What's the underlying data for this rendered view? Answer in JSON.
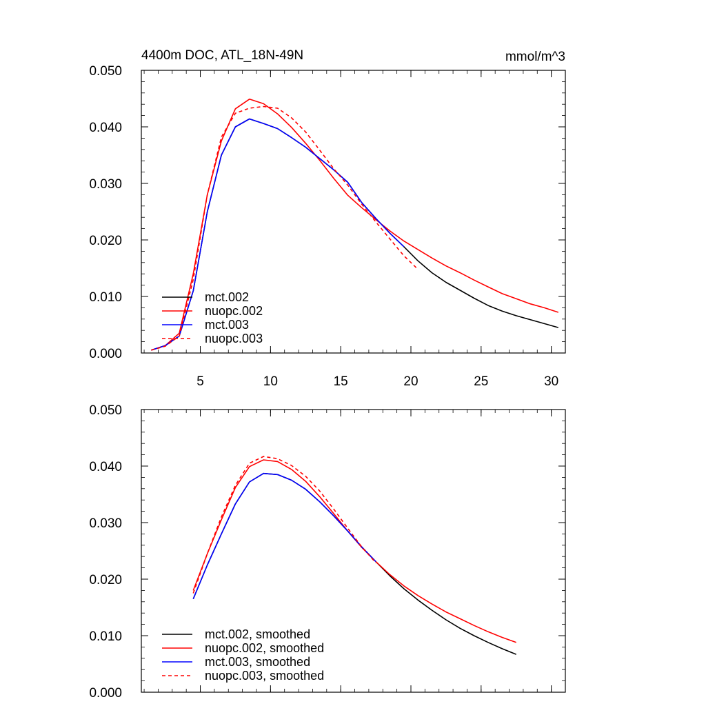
{
  "chart_data": [
    {
      "type": "line",
      "title": "4400m DOC, ATL_18N-49N",
      "units": "mmol/m^3",
      "xlabel": "",
      "ylabel": "",
      "xlim": [
        0.8,
        31
      ],
      "ylim": [
        0,
        0.05
      ],
      "xticks": [
        5,
        10,
        15,
        20,
        25,
        30
      ],
      "xtick_labels": [
        "5",
        "10",
        "15",
        "20",
        "25",
        "30"
      ],
      "yticks": [
        0,
        0.01,
        0.02,
        0.03,
        0.04,
        0.05
      ],
      "ytick_labels": [
        "0.000",
        "0.010",
        "0.020",
        "0.030",
        "0.040",
        "0.050"
      ],
      "legend_position": "lower-left",
      "series": [
        {
          "name": "mct.002",
          "color": "#000000",
          "dash": "solid",
          "x": [
            1.5,
            2.5,
            3.5,
            4.5,
            5.5,
            6.5,
            7.5,
            8.5,
            9.5,
            10.5,
            11.5,
            12.5,
            13.5,
            14.5,
            15.5,
            16.5,
            17.5,
            18.5,
            19.5,
            20.5,
            21.5,
            22.5,
            23.5,
            24.5,
            25.5,
            26.5,
            27.5,
            28.5,
            29.5,
            30.5
          ],
          "y": [
            0.0005,
            0.0013,
            0.003,
            0.011,
            0.025,
            0.035,
            0.04,
            0.0414,
            0.0406,
            0.0397,
            0.0381,
            0.0364,
            0.0344,
            0.0324,
            0.0302,
            0.0266,
            0.0238,
            0.0212,
            0.0188,
            0.0163,
            0.0142,
            0.0125,
            0.0111,
            0.0097,
            0.0084,
            0.0074,
            0.0066,
            0.0059,
            0.0052,
            0.0045
          ]
        },
        {
          "name": "nuopc.002",
          "color": "#ff0000",
          "dash": "solid",
          "x": [
            1.5,
            2.5,
            3.5,
            4.5,
            5.5,
            6.5,
            7.5,
            8.5,
            9.5,
            10.5,
            11.5,
            12.5,
            13.5,
            14.5,
            15.5,
            16.5,
            17.5,
            18.5,
            19.5,
            20.5,
            21.5,
            22.5,
            23.5,
            24.5,
            25.5,
            26.5,
            27.5,
            28.5,
            29.5,
            30.5
          ],
          "y": [
            0.0005,
            0.0013,
            0.0035,
            0.014,
            0.028,
            0.0375,
            0.0432,
            0.0449,
            0.0441,
            0.0423,
            0.0399,
            0.0371,
            0.0341,
            0.0309,
            0.0279,
            0.0257,
            0.0236,
            0.0216,
            0.0198,
            0.0183,
            0.0168,
            0.0154,
            0.0142,
            0.0129,
            0.0117,
            0.0105,
            0.0096,
            0.0087,
            0.008,
            0.0072
          ]
        },
        {
          "name": "mct.003",
          "color": "#0000ff",
          "dash": "solid",
          "x": [
            1.5,
            2.5,
            3.5,
            4.5,
            5.5,
            6.5,
            7.5,
            8.5,
            9.5,
            10.5,
            11.5,
            12.5,
            13.5,
            14.5,
            15.5,
            16.5,
            17.5,
            18.5,
            19.5
          ],
          "y": [
            0.0005,
            0.0013,
            0.003,
            0.011,
            0.025,
            0.035,
            0.04,
            0.0414,
            0.0406,
            0.0397,
            0.0381,
            0.0364,
            0.0344,
            0.0324,
            0.0302,
            0.0266,
            0.0238,
            0.0212,
            0.0188
          ]
        },
        {
          "name": "nuopc.003",
          "color": "#ff0000",
          "dash": "dashed",
          "x": [
            1.5,
            2.5,
            3.5,
            4.5,
            5.5,
            6.5,
            7.5,
            8.5,
            9.5,
            10.5,
            11.5,
            12.5,
            13.5,
            14.5,
            15.5,
            16.5,
            17.5,
            18.5,
            19.5,
            20.5
          ],
          "y": [
            0.0005,
            0.0012,
            0.003,
            0.013,
            0.028,
            0.0382,
            0.0424,
            0.0433,
            0.0436,
            0.0433,
            0.0416,
            0.0391,
            0.0359,
            0.0326,
            0.0297,
            0.0263,
            0.0232,
            0.0202,
            0.0172,
            0.0148
          ]
        }
      ]
    },
    {
      "type": "line",
      "title": "",
      "units": "",
      "xlabel": "",
      "ylabel": "",
      "xlim": [
        0.8,
        31
      ],
      "ylim": [
        0,
        0.05
      ],
      "xticks": [
        5,
        10,
        15,
        20,
        25,
        30
      ],
      "xtick_labels": [],
      "yticks": [
        0,
        0.01,
        0.02,
        0.03,
        0.04,
        0.05
      ],
      "ytick_labels": [
        "0.000",
        "0.010",
        "0.020",
        "0.030",
        "0.040",
        "0.050"
      ],
      "legend_position": "lower-left",
      "series": [
        {
          "name": "mct.002, smoothed",
          "color": "#000000",
          "dash": "solid",
          "x": [
            4.5,
            5.5,
            6.5,
            7.5,
            8.5,
            9.5,
            10.5,
            11.5,
            12.5,
            13.5,
            14.5,
            15.5,
            16.5,
            17.5,
            18.5,
            19.5,
            20.5,
            21.5,
            22.5,
            23.5,
            24.5,
            25.5,
            26.5,
            27.5
          ],
          "y": [
            0.0165,
            0.0225,
            0.028,
            0.0333,
            0.0372,
            0.0387,
            0.0385,
            0.0375,
            0.0359,
            0.0337,
            0.0312,
            0.0285,
            0.0257,
            0.0231,
            0.0206,
            0.0183,
            0.0163,
            0.0145,
            0.0128,
            0.0113,
            0.01,
            0.0088,
            0.0077,
            0.0067
          ]
        },
        {
          "name": "nuopc.002, smoothed",
          "color": "#ff0000",
          "dash": "solid",
          "x": [
            4.5,
            5.5,
            6.5,
            7.5,
            8.5,
            9.5,
            10.5,
            11.5,
            12.5,
            13.5,
            14.5,
            15.5,
            16.5,
            17.5,
            18.5,
            19.5,
            20.5,
            21.5,
            22.5,
            23.5,
            24.5,
            25.5,
            26.5,
            27.5
          ],
          "y": [
            0.018,
            0.0245,
            0.0305,
            0.0362,
            0.0399,
            0.0411,
            0.0408,
            0.0394,
            0.0373,
            0.0346,
            0.0316,
            0.0285,
            0.0256,
            0.0231,
            0.0208,
            0.0188,
            0.0171,
            0.0156,
            0.0142,
            0.013,
            0.0118,
            0.0107,
            0.0097,
            0.0088
          ]
        },
        {
          "name": "mct.003, smoothed",
          "color": "#0000ff",
          "dash": "solid",
          "x": [
            4.5,
            5.5,
            6.5,
            7.5,
            8.5,
            9.5,
            10.5,
            11.5,
            12.5,
            13.5,
            14.5,
            15.5,
            16.5,
            17.5
          ],
          "y": [
            0.0165,
            0.0225,
            0.028,
            0.0333,
            0.0372,
            0.0387,
            0.0385,
            0.0375,
            0.0359,
            0.0337,
            0.0312,
            0.0285,
            0.0257,
            0.0231
          ]
        },
        {
          "name": "nuopc.003, smoothed",
          "color": "#ff0000",
          "dash": "dashed",
          "x": [
            4.5,
            5.5,
            6.5,
            7.5,
            8.5,
            9.5,
            10.5,
            11.5,
            12.5,
            13.5,
            14.5,
            15.5,
            16.5,
            17.5
          ],
          "y": [
            0.0175,
            0.0245,
            0.031,
            0.0366,
            0.0405,
            0.0417,
            0.0413,
            0.0401,
            0.0382,
            0.0356,
            0.0324,
            0.029,
            0.0257,
            0.0229
          ]
        }
      ]
    }
  ]
}
